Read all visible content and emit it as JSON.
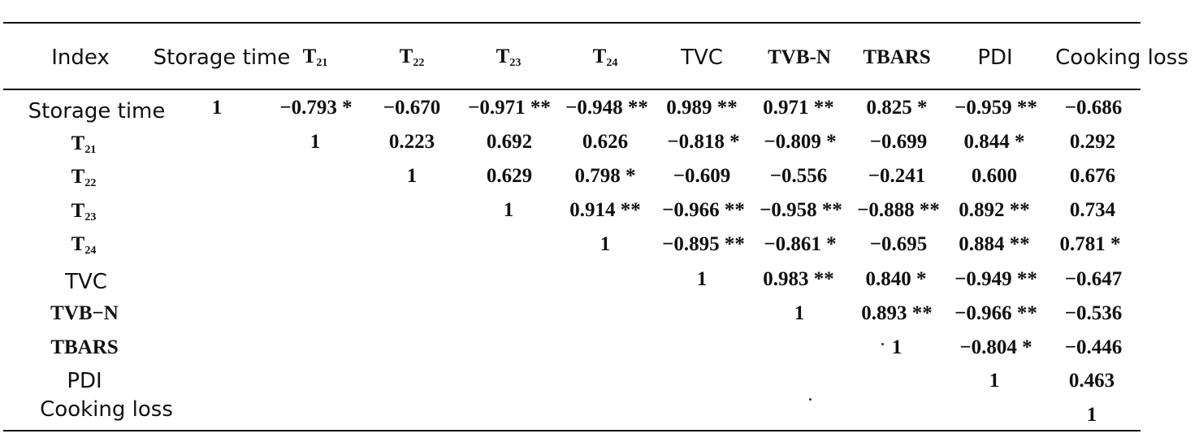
{
  "table": {
    "headers": [
      {
        "text": "Index",
        "sub": ""
      },
      {
        "text": "Storage time",
        "sub": ""
      },
      {
        "text": "T",
        "sub": "21"
      },
      {
        "text": "T",
        "sub": "22"
      },
      {
        "text": "T",
        "sub": "23"
      },
      {
        "text": "T",
        "sub": "24"
      },
      {
        "text": "TVC",
        "sub": ""
      },
      {
        "text": "TVB-N",
        "sub": ""
      },
      {
        "text": "TBARS",
        "sub": ""
      },
      {
        "text": "PDI",
        "sub": ""
      },
      {
        "text": "Cooking loss",
        "sub": ""
      }
    ],
    "rows": [
      {
        "label": "Storage time",
        "sub": "",
        "values": [
          "1",
          "−0.793 *",
          "−0.670",
          "−0.971 **",
          "−0.948 **",
          "0.989 **",
          "0.971 **",
          "0.825 *",
          "−0.959 **",
          "−0.686"
        ]
      },
      {
        "label": "T",
        "sub": "21",
        "values": [
          "1",
          "0.223",
          "0.692",
          "0.626",
          "−0.818 *",
          "−0.809 *",
          "−0.699",
          "0.844 *",
          "0.292"
        ]
      },
      {
        "label": "T",
        "sub": "22",
        "values": [
          "1",
          "0.629",
          "0.798 *",
          "−0.609",
          "−0.556",
          "−0.241",
          "0.600",
          "0.676"
        ]
      },
      {
        "label": "T",
        "sub": "23",
        "values": [
          "1",
          "0.914 **",
          "−0.966 **",
          "−0.958 **",
          "−0.888 **",
          "0.892 **",
          "0.734"
        ]
      },
      {
        "label": "T",
        "sub": "24",
        "values": [
          "1",
          "−0.895 **",
          "−0.861 *",
          "−0.695",
          "0.884 **",
          "0.781 *"
        ]
      },
      {
        "label": "TVC",
        "sub": "",
        "values": [
          "1",
          "0.983 **",
          "0.840 *",
          "−0.949 **",
          "−0.647"
        ]
      },
      {
        "label": "TVB−N",
        "sub": "",
        "values": [
          "1",
          "0.893 **",
          "−0.966 **",
          "−0.536"
        ]
      },
      {
        "label": "TBARS",
        "sub": "",
        "values": [
          "1",
          "−0.804 *",
          "−0.446"
        ]
      },
      {
        "label": "PDI",
        "sub": "",
        "values": [
          "1",
          "0.463"
        ]
      },
      {
        "label": "Cooking loss",
        "sub": "",
        "values": [
          "1"
        ]
      }
    ]
  }
}
